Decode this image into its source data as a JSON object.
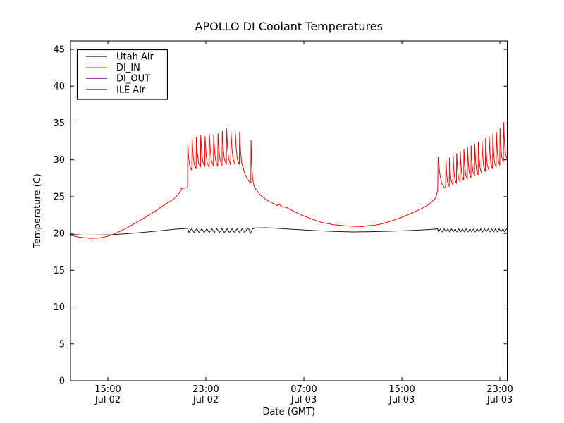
{
  "chart_data": {
    "type": "line",
    "title": "APOLLO DI Coolant Temperatures",
    "xlabel": "Date (GMT)",
    "ylabel": "Temperature (C)",
    "background": "#ffffff",
    "axes_color": "#000000",
    "grid": false,
    "ylim": [
      0,
      46.15
    ],
    "xlim_hours": [
      0,
      35.65
    ],
    "y_ticks": [
      0,
      5,
      10,
      15,
      20,
      25,
      30,
      35,
      40,
      45
    ],
    "x_ticks": [
      {
        "t": 3.05,
        "time": "15:00",
        "date": "Jul 02"
      },
      {
        "t": 11.05,
        "time": "23:00",
        "date": "Jul 02"
      },
      {
        "t": 19.05,
        "time": "07:00",
        "date": "Jul 03"
      },
      {
        "t": 27.05,
        "time": "15:00",
        "date": "Jul 03"
      },
      {
        "t": 35.05,
        "time": "23:00",
        "date": "Jul 03"
      }
    ],
    "legend": {
      "position": "upper left",
      "entries": [
        {
          "label": "Utah Air",
          "color": "#1a1a1a"
        },
        {
          "label": "DI_IN",
          "color": "#ffa500"
        },
        {
          "label": "DI_OUT",
          "color": "#800080"
        },
        {
          "label": "ILE Air",
          "color": "#ff0000"
        }
      ]
    },
    "series": [
      {
        "name": "Utah Air",
        "color": "#1a1a1a",
        "segments": [
          {
            "kind": "poly",
            "pts": [
              [
                0,
                19.85
              ],
              [
                0.9,
                19.8
              ],
              [
                2.1,
                19.78
              ],
              [
                3.3,
                19.82
              ],
              [
                4.5,
                19.95
              ],
              [
                6.0,
                20.15
              ],
              [
                7.5,
                20.4
              ],
              [
                8.6,
                20.58
              ],
              [
                9.45,
                20.68
              ]
            ]
          },
          {
            "kind": "dips",
            "t0": 9.55,
            "t1": 14.5,
            "count": 12,
            "base": 20.7,
            "dip": 20.12
          },
          {
            "kind": "poly",
            "pts": [
              [
                14.55,
                20.6
              ],
              [
                14.68,
                20.0
              ],
              [
                14.85,
                20.6
              ],
              [
                15.1,
                20.75
              ],
              [
                16.0,
                20.78
              ],
              [
                17.0,
                20.68
              ],
              [
                18.5,
                20.52
              ],
              [
                20.0,
                20.38
              ],
              [
                21.5,
                20.28
              ],
              [
                23.0,
                20.2
              ],
              [
                24.5,
                20.24
              ],
              [
                26.0,
                20.3
              ],
              [
                27.5,
                20.38
              ],
              [
                28.7,
                20.48
              ],
              [
                29.85,
                20.6
              ]
            ]
          },
          {
            "kind": "dips",
            "t0": 29.95,
            "t1": 35.65,
            "count": 19,
            "base": 20.68,
            "dip": 20.22
          }
        ]
      },
      {
        "name": "DI_IN",
        "color": "#ffa500",
        "segments": []
      },
      {
        "name": "DI_OUT",
        "color": "#800080",
        "segments": []
      },
      {
        "name": "ILE Air",
        "color": "#ff0000",
        "segments": [
          {
            "kind": "poly",
            "pts": [
              [
                0,
                19.75
              ],
              [
                0.7,
                19.5
              ],
              [
                1.6,
                19.33
              ],
              [
                2.3,
                19.37
              ],
              [
                3.0,
                19.6
              ],
              [
                3.6,
                19.95
              ],
              [
                4.6,
                20.75
              ],
              [
                5.6,
                21.7
              ],
              [
                6.6,
                22.7
              ],
              [
                7.6,
                23.8
              ],
              [
                8.4,
                24.65
              ],
              [
                8.95,
                25.6
              ],
              [
                9.05,
                26.1
              ],
              [
                9.5,
                26.2
              ]
            ]
          },
          {
            "kind": "spikes",
            "t0": 9.55,
            "t1": 14.13,
            "enter": 26.2,
            "peaks": [
              32.0,
              32.8,
              33.1,
              33.3,
              33.2,
              33.5,
              33.4,
              33.6,
              33.9,
              34.2,
              34.0,
              33.9,
              33.8
            ],
            "troughs": [
              28.6,
              28.8,
              29.0,
              29.1,
              29.0,
              29.2,
              29.15,
              29.3,
              29.4,
              29.35,
              29.45,
              29.4,
              28.8
            ]
          },
          {
            "kind": "poly",
            "pts": [
              [
                14.2,
                28.2
              ],
              [
                14.45,
                27.3
              ],
              [
                14.68,
                26.9
              ]
            ]
          },
          {
            "kind": "spikes",
            "t0": 14.72,
            "t1": 14.98,
            "enter": 26.85,
            "peaks": [
              32.7
            ],
            "troughs": [
              26.5
            ]
          },
          {
            "kind": "poly",
            "pts": [
              [
                15.05,
                26.2
              ],
              [
                15.45,
                25.3
              ],
              [
                15.9,
                24.7
              ],
              [
                16.3,
                24.25
              ],
              [
                16.6,
                24.05
              ],
              [
                16.85,
                23.8
              ],
              [
                17.05,
                23.95
              ],
              [
                17.3,
                23.6
              ],
              [
                17.6,
                23.55
              ],
              [
                17.95,
                23.25
              ],
              [
                18.4,
                22.85
              ],
              [
                19.0,
                22.4
              ],
              [
                19.7,
                21.95
              ],
              [
                20.5,
                21.5
              ],
              [
                21.4,
                21.2
              ],
              [
                22.3,
                21.05
              ],
              [
                23.3,
                20.95
              ],
              [
                23.9,
                20.93
              ],
              [
                24.2,
                21.05
              ],
              [
                24.8,
                21.1
              ],
              [
                25.4,
                21.3
              ],
              [
                26.2,
                21.7
              ],
              [
                27.05,
                22.2
              ],
              [
                27.9,
                22.8
              ],
              [
                28.8,
                23.5
              ],
              [
                29.3,
                24.0
              ],
              [
                29.8,
                24.8
              ],
              [
                29.93,
                25.6
              ]
            ]
          },
          {
            "kind": "spikes",
            "t0": 29.97,
            "t1": 30.55,
            "enter": 25.7,
            "peaks": [
              30.4
            ],
            "troughs": [
              26.2
            ]
          },
          {
            "kind": "spikes",
            "t0": 30.62,
            "t1": 35.63,
            "enter": 26.3,
            "peaks": [
              30.0,
              30.3,
              30.6,
              30.9,
              31.2,
              31.45,
              31.7,
              31.95,
              32.2,
              32.45,
              32.7,
              32.95,
              33.2,
              33.5,
              33.8,
              34.3,
              35.1
            ],
            "troughs": [
              26.4,
              26.6,
              26.8,
              27.0,
              27.2,
              27.4,
              27.6,
              27.8,
              28.0,
              28.2,
              28.4,
              28.6,
              28.8,
              29.0,
              29.3,
              29.7,
              30.2
            ]
          }
        ]
      }
    ]
  }
}
